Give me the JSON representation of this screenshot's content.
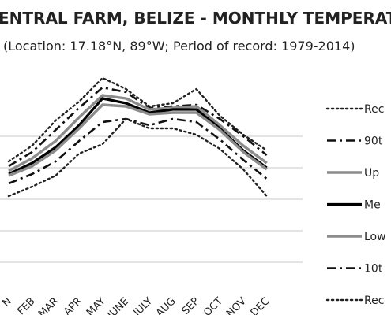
{
  "chart_data": {
    "type": "line",
    "title": "ENTRAL FARM, BELIZE - MONTHLY TEMPERATUR",
    "subtitle": "(Location: 17.18°N, 89°W; Period of record: 1979-2014)",
    "categories": [
      "N",
      "FEB",
      "MAR",
      "APR",
      "MAY",
      "JUNE",
      "JULY",
      "AUG",
      "SEP",
      "OCT",
      "NOV",
      "DEC"
    ],
    "ylim": [
      0,
      6
    ],
    "gridlines": [
      1,
      2,
      3,
      4,
      5
    ],
    "grid": true,
    "legend_position": "right",
    "series": [
      {
        "name": "Rec",
        "style": "dotted",
        "color": "#222222",
        "values": [
          4.2,
          4.7,
          5.5,
          6.1,
          6.85,
          6.5,
          5.95,
          6.05,
          6.5,
          5.65,
          5.05,
          4.55
        ]
      },
      {
        "name": "90t",
        "style": "dashdot",
        "color": "#111111",
        "values": [
          4.05,
          4.5,
          5.2,
          5.9,
          6.55,
          6.4,
          5.9,
          5.95,
          6.0,
          5.55,
          5.0,
          4.4
        ]
      },
      {
        "name": "Up",
        "style": "solid-gray",
        "color": "#8c8c8c",
        "values": [
          3.9,
          4.3,
          4.85,
          5.6,
          6.3,
          6.2,
          5.85,
          5.9,
          5.95,
          5.35,
          4.7,
          4.15
        ]
      },
      {
        "name": "Me",
        "style": "solid-black",
        "color": "#000000",
        "values": [
          3.8,
          4.15,
          4.65,
          5.35,
          6.2,
          6.05,
          5.75,
          5.85,
          5.85,
          5.25,
          4.55,
          4.0
        ]
      },
      {
        "name": "Low",
        "style": "solid-gray",
        "color": "#8c8c8c",
        "values": [
          3.75,
          4.05,
          4.55,
          5.25,
          6.0,
          5.95,
          5.7,
          5.75,
          5.75,
          5.2,
          4.5,
          3.95
        ]
      },
      {
        "name": "10t",
        "style": "dashdot",
        "color": "#111111",
        "values": [
          3.5,
          3.8,
          4.2,
          4.85,
          5.45,
          5.55,
          5.35,
          5.55,
          5.45,
          4.9,
          4.25,
          3.65
        ]
      },
      {
        "name": "Rec",
        "style": "dotted",
        "color": "#222222",
        "values": [
          3.1,
          3.4,
          3.75,
          4.45,
          4.75,
          5.55,
          5.25,
          5.25,
          5.05,
          4.6,
          3.95,
          3.1
        ]
      }
    ]
  }
}
